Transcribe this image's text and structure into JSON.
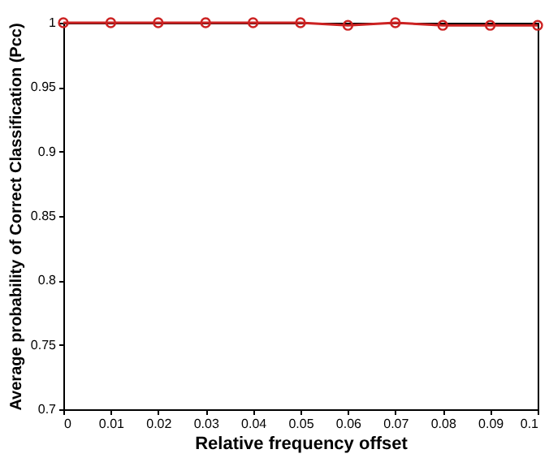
{
  "chart_data": {
    "type": "line",
    "xlabel": "Relative frequency offset",
    "ylabel": "Average probability of Correct Classification (Pcc)",
    "x": [
      0,
      0.01,
      0.02,
      0.03,
      0.04,
      0.05,
      0.06,
      0.07,
      0.08,
      0.09,
      0.1
    ],
    "series": [
      {
        "color": "#cc2222",
        "values": [
          1,
          1,
          1,
          1,
          1,
          1,
          0.998,
          1,
          0.998,
          0.998,
          0.998
        ]
      }
    ],
    "xlim": [
      0,
      0.1
    ],
    "xticks": [
      0,
      0.01,
      0.02,
      0.03,
      0.04,
      0.05,
      0.06,
      0.07,
      0.08,
      0.09,
      0.1
    ],
    "ylim": [
      0.7,
      1
    ],
    "yticks": [
      0.7,
      0.75,
      0.8,
      0.85,
      0.9,
      0.95,
      1
    ],
    "marker": "circle",
    "line_style": "solid",
    "grid": false,
    "legend": false
  }
}
